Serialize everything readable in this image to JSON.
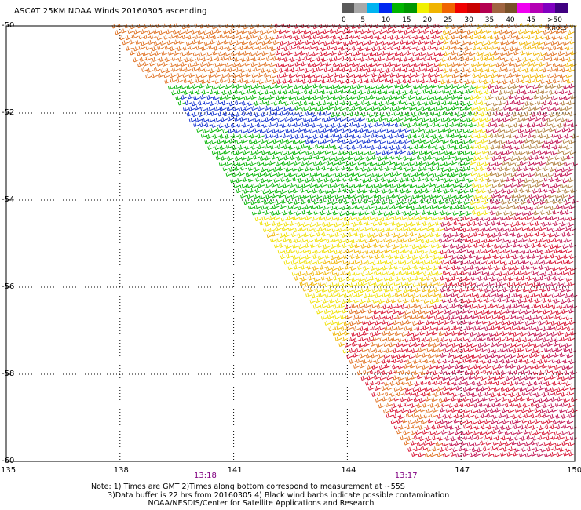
{
  "header": {
    "title": "ASCAT 25KM NOAA Winds 20160305 ascending"
  },
  "legend": {
    "labels": [
      "0",
      "5",
      "10",
      "15",
      "20",
      "25",
      "30",
      "35",
      "40",
      "45",
      ">50 knots"
    ],
    "colors": [
      "#5a5a5a",
      "#a8a8a8",
      "#00b4f0",
      "#0028f0",
      "#00b400",
      "#009600",
      "#f0f000",
      "#f0b400",
      "#f06400",
      "#f00000",
      "#c80000",
      "#b40050",
      "#a06440",
      "#785028",
      "#f000f0",
      "#b400b4",
      "#8000c0",
      "#400080"
    ]
  },
  "map": {
    "lat_labels": [
      "-50",
      "-52",
      "-54",
      "-56",
      "-58",
      "-60"
    ],
    "lon_labels": [
      "135",
      "138",
      "141",
      "144",
      "147",
      "150"
    ],
    "lat_values": [
      -50,
      -52,
      -54,
      -56,
      -58,
      -60
    ],
    "lon_values": [
      135,
      138,
      141,
      144,
      147,
      150
    ],
    "time_labels": [
      {
        "text": "13:18",
        "lon": 140.2
      },
      {
        "text": "13:17",
        "lon": 145.5
      }
    ]
  },
  "notes": {
    "line1": "Note: 1) Times are GMT 2)Times along bottom correspond to measurement at ~55S",
    "line2": "       3)Data buffer is 22 hrs from 20160305 4) Black wind barbs indicate possible contamination",
    "line3": "                        NOAA/NESDIS/Center for Satellite Applications and Research"
  }
}
